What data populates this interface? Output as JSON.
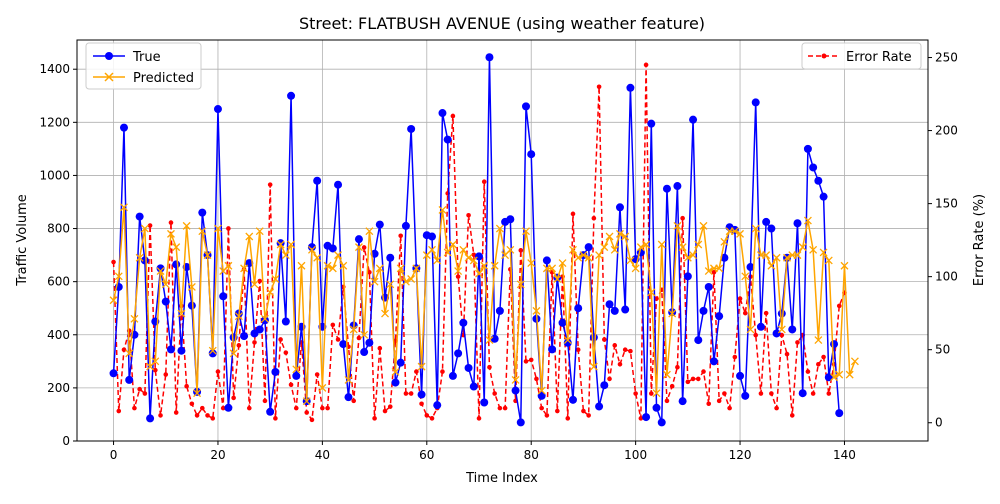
{
  "chart_data": {
    "type": "line",
    "title": "Street: FLATBUSH AVENUE (using weather feature)",
    "xlabel": "Time Index",
    "ylabel": "Traffic Volume",
    "y2label": "Error Rate (%)",
    "xlim": [
      -7,
      156
    ],
    "ylim": [
      0,
      1510
    ],
    "y2lim": [
      -12.5,
      262
    ],
    "xticks": [
      0,
      20,
      40,
      60,
      80,
      100,
      120,
      140
    ],
    "yticks": [
      0,
      200,
      400,
      600,
      800,
      1000,
      1200,
      1400
    ],
    "y2ticks": [
      0,
      50,
      100,
      150,
      200,
      250
    ],
    "grid": true,
    "legend_left_placement": "upper-left",
    "legend_right_placement": "upper-right",
    "series": [
      {
        "name": "True",
        "axis": "left",
        "color": "#0000ff",
        "marker": "circle",
        "linestyle": "solid",
        "values": [
          255,
          580,
          1180,
          230,
          400,
          845,
          680,
          85,
          450,
          650,
          525,
          345,
          665,
          340,
          655,
          510,
          185,
          860,
          700,
          330,
          1250,
          545,
          125,
          390,
          480,
          395,
          670,
          405,
          420,
          455,
          110,
          260,
          745,
          450,
          1300,
          245,
          430,
          150,
          730,
          980,
          430,
          735,
          725,
          965,
          365,
          165,
          435,
          760,
          335,
          370,
          705,
          815,
          540,
          690,
          220,
          295,
          810,
          1175,
          650,
          175,
          775,
          770,
          135,
          1235,
          1135,
          245,
          330,
          445,
          275,
          205,
          695,
          145,
          1445,
          385,
          490,
          825,
          835,
          190,
          70,
          1260,
          1080,
          460,
          170,
          680,
          345,
          615,
          445,
          370,
          155,
          500,
          700,
          730,
          390,
          130,
          210,
          515,
          490,
          880,
          495,
          1330,
          685,
          710,
          90,
          1195,
          125,
          70,
          950,
          485,
          960,
          150,
          620,
          1210,
          380,
          490,
          580,
          300,
          470,
          690,
          805,
          795,
          245,
          170,
          655,
          1275,
          430,
          825,
          800,
          405,
          480,
          690,
          420,
          820,
          180,
          1100,
          1030,
          980,
          920,
          240,
          365,
          105
        ]
      },
      {
        "name": "Predicted",
        "axis": "left",
        "color": "#ffa500",
        "marker": "x",
        "linestyle": "solid",
        "values": [
          530,
          620,
          880,
          330,
          460,
          690,
          800,
          280,
          300,
          640,
          590,
          780,
          730,
          480,
          810,
          580,
          180,
          790,
          700,
          340,
          800,
          640,
          660,
          330,
          470,
          650,
          770,
          590,
          790,
          460,
          560,
          610,
          740,
          700,
          740,
          270,
          660,
          150,
          720,
          690,
          200,
          660,
          650,
          700,
          660,
          230,
          420,
          730,
          400,
          790,
          600,
          650,
          480,
          590,
          260,
          650,
          600,
          610,
          650,
          280,
          700,
          720,
          680,
          870,
          710,
          740,
          640,
          720,
          690,
          680,
          630,
          660,
          380,
          660,
          800,
          700,
          720,
          230,
          590,
          790,
          670,
          490,
          190,
          650,
          650,
          610,
          670,
          380,
          720,
          690,
          700,
          690,
          280,
          700,
          730,
          770,
          720,
          780,
          770,
          680,
          650,
          730,
          740,
          560,
          180,
          740,
          250,
          480,
          810,
          730,
          690,
          700,
          740,
          810,
          640,
          650,
          650,
          750,
          790,
          790,
          780,
          620,
          420,
          800,
          700,
          700,
          660,
          690,
          420,
          690,
          700,
          700,
          730,
          830,
          720,
          380,
          710,
          680,
          240,
          250,
          660,
          250,
          300
        ]
      },
      {
        "name": "Error Rate",
        "axis": "right",
        "color": "#ff0000",
        "marker": "dot",
        "linestyle": "dashed",
        "values": [
          110,
          8,
          50,
          63,
          10,
          23,
          20,
          135,
          36,
          5,
          33,
          137,
          7,
          80,
          25,
          13,
          5,
          10,
          5,
          3,
          35,
          10,
          133,
          17,
          53,
          105,
          10,
          55,
          97,
          15,
          163,
          3,
          57,
          48,
          26,
          10,
          55,
          7,
          2,
          33,
          10,
          10,
          67,
          57,
          93,
          52,
          15,
          58,
          120,
          103,
          3,
          51,
          8,
          11,
          56,
          128,
          20,
          20,
          35,
          13,
          5,
          3,
          10,
          35,
          157,
          210,
          100,
          60,
          142,
          115,
          3,
          165,
          38,
          20,
          10,
          10,
          105,
          15,
          118,
          42,
          43,
          30,
          10,
          5,
          103,
          8,
          100,
          3,
          143,
          50,
          8,
          5,
          140,
          230,
          57,
          30,
          53,
          40,
          50,
          49,
          20,
          3,
          245,
          20,
          85,
          91,
          15,
          25,
          38,
          140,
          28,
          30,
          30,
          35,
          13,
          103,
          15,
          20,
          10,
          45,
          85,
          75,
          100,
          60,
          20,
          75,
          20,
          10,
          60,
          47,
          5,
          55,
          60,
          35,
          20,
          40,
          45,
          20,
          40,
          80,
          89
        ]
      }
    ]
  }
}
